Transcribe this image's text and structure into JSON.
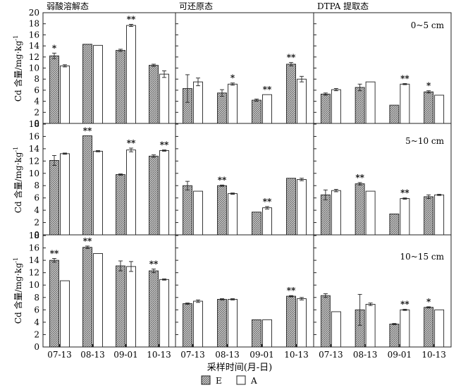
{
  "figure": {
    "y_label": "Cd 含量/mg·kg",
    "y_label_sup": "-1",
    "x_label": "采样时间(月-日)",
    "columns": [
      "弱酸溶解态",
      "可还原态",
      "DTPA 提取态"
    ],
    "rows": [
      "0~5 cm",
      "5~10 cm",
      "10~15 cm"
    ],
    "legend": [
      {
        "key": "E",
        "label": "E",
        "fill": "hatch"
      },
      {
        "key": "A",
        "label": "A",
        "fill": "#ffffff"
      }
    ]
  },
  "chart_data": {
    "type": "bar",
    "categories": [
      "07-13",
      "08-13",
      "09-01",
      "10-13"
    ],
    "y_ticks": [
      0,
      2,
      4,
      6,
      8,
      10,
      12,
      14,
      16,
      18,
      20
    ],
    "ylim_rows": [
      [
        0,
        20
      ],
      [
        0,
        18
      ],
      [
        0,
        18
      ]
    ],
    "grid": false,
    "legend_position": "bottom-center",
    "panels": [
      {
        "row": 0,
        "col": 0,
        "series": [
          {
            "name": "E",
            "values": [
              12.2,
              14.3,
              13.2,
              10.5
            ],
            "errors": [
              0.5,
              0,
              0.2,
              0.2
            ]
          },
          {
            "name": "A",
            "values": [
              10.4,
              14.1,
              17.7,
              8.9
            ],
            "errors": [
              0.2,
              0,
              0.2,
              0.6
            ]
          }
        ],
        "sig": [
          "*",
          "",
          "**",
          ""
        ]
      },
      {
        "row": 0,
        "col": 1,
        "series": [
          {
            "name": "E",
            "values": [
              6.3,
              5.5,
              4.2,
              10.7
            ],
            "errors": [
              2.5,
              0.6,
              0.2,
              0.3
            ]
          },
          {
            "name": "A",
            "values": [
              7.5,
              7.1,
              5.2,
              8.0
            ],
            "errors": [
              0.7,
              0.2,
              0,
              0.5
            ]
          }
        ],
        "sig": [
          "",
          "*",
          "**",
          "**"
        ]
      },
      {
        "row": 0,
        "col": 2,
        "series": [
          {
            "name": "E",
            "values": [
              5.3,
              6.5,
              3.3,
              5.7
            ],
            "errors": [
              0.2,
              0.6,
              0,
              0.2
            ]
          },
          {
            "name": "A",
            "values": [
              6.1,
              7.5,
              7.1,
              5.1
            ],
            "errors": [
              0.2,
              0,
              0.1,
              0
            ]
          }
        ],
        "sig": [
          "",
          "",
          "**",
          "*"
        ]
      },
      {
        "row": 1,
        "col": 0,
        "series": [
          {
            "name": "E",
            "values": [
              12.1,
              16.1,
              9.8,
              12.8
            ],
            "errors": [
              0.8,
              0,
              0.1,
              0.2
            ]
          },
          {
            "name": "A",
            "values": [
              13.2,
              13.6,
              13.8,
              13.7
            ],
            "errors": [
              0.1,
              0.1,
              0.3,
              0.1
            ]
          }
        ],
        "sig": [
          "",
          "**",
          "**",
          "**"
        ]
      },
      {
        "row": 1,
        "col": 1,
        "series": [
          {
            "name": "E",
            "values": [
              8.0,
              8.0,
              3.7,
              9.2
            ],
            "errors": [
              0.7,
              0.1,
              0,
              0
            ]
          },
          {
            "name": "A",
            "values": [
              7.1,
              6.7,
              4.4,
              9.0
            ],
            "errors": [
              0,
              0.1,
              0.2,
              0.2
            ]
          }
        ],
        "sig": [
          "",
          "**",
          "**",
          ""
        ]
      },
      {
        "row": 1,
        "col": 2,
        "series": [
          {
            "name": "E",
            "values": [
              6.5,
              8.3,
              3.4,
              6.2
            ],
            "errors": [
              0.8,
              0.2,
              0,
              0.3
            ]
          },
          {
            "name": "A",
            "values": [
              7.2,
              7.1,
              5.9,
              6.5
            ],
            "errors": [
              0.2,
              0,
              0.1,
              0.1
            ]
          }
        ],
        "sig": [
          "",
          "**",
          "**",
          ""
        ]
      },
      {
        "row": 2,
        "col": 0,
        "series": [
          {
            "name": "E",
            "values": [
              14.0,
              16.1,
              13.1,
              12.3
            ],
            "errors": [
              0.3,
              0.2,
              0.8,
              0.3
            ]
          },
          {
            "name": "A",
            "values": [
              10.7,
              15.1,
              13.0,
              10.9
            ],
            "errors": [
              0,
              0,
              0.8,
              0.1
            ]
          }
        ],
        "sig": [
          "**",
          "**",
          "",
          "**"
        ]
      },
      {
        "row": 2,
        "col": 1,
        "series": [
          {
            "name": "E",
            "values": [
              7.0,
              7.7,
              4.4,
              8.2
            ],
            "errors": [
              0.1,
              0.1,
              0,
              0.1
            ]
          },
          {
            "name": "A",
            "values": [
              7.4,
              7.7,
              4.4,
              7.8
            ],
            "errors": [
              0.2,
              0.1,
              0,
              0.2
            ]
          }
        ],
        "sig": [
          "",
          "",
          "",
          "**"
        ]
      },
      {
        "row": 2,
        "col": 2,
        "series": [
          {
            "name": "E",
            "values": [
              8.3,
              6.0,
              3.7,
              6.4
            ],
            "errors": [
              0.3,
              2.5,
              0.1,
              0.1
            ]
          },
          {
            "name": "A",
            "values": [
              5.7,
              6.9,
              6.0,
              6.0
            ],
            "errors": [
              0,
              0.2,
              0.1,
              0
            ]
          }
        ],
        "sig": [
          "",
          "",
          "**",
          "*"
        ]
      }
    ]
  }
}
